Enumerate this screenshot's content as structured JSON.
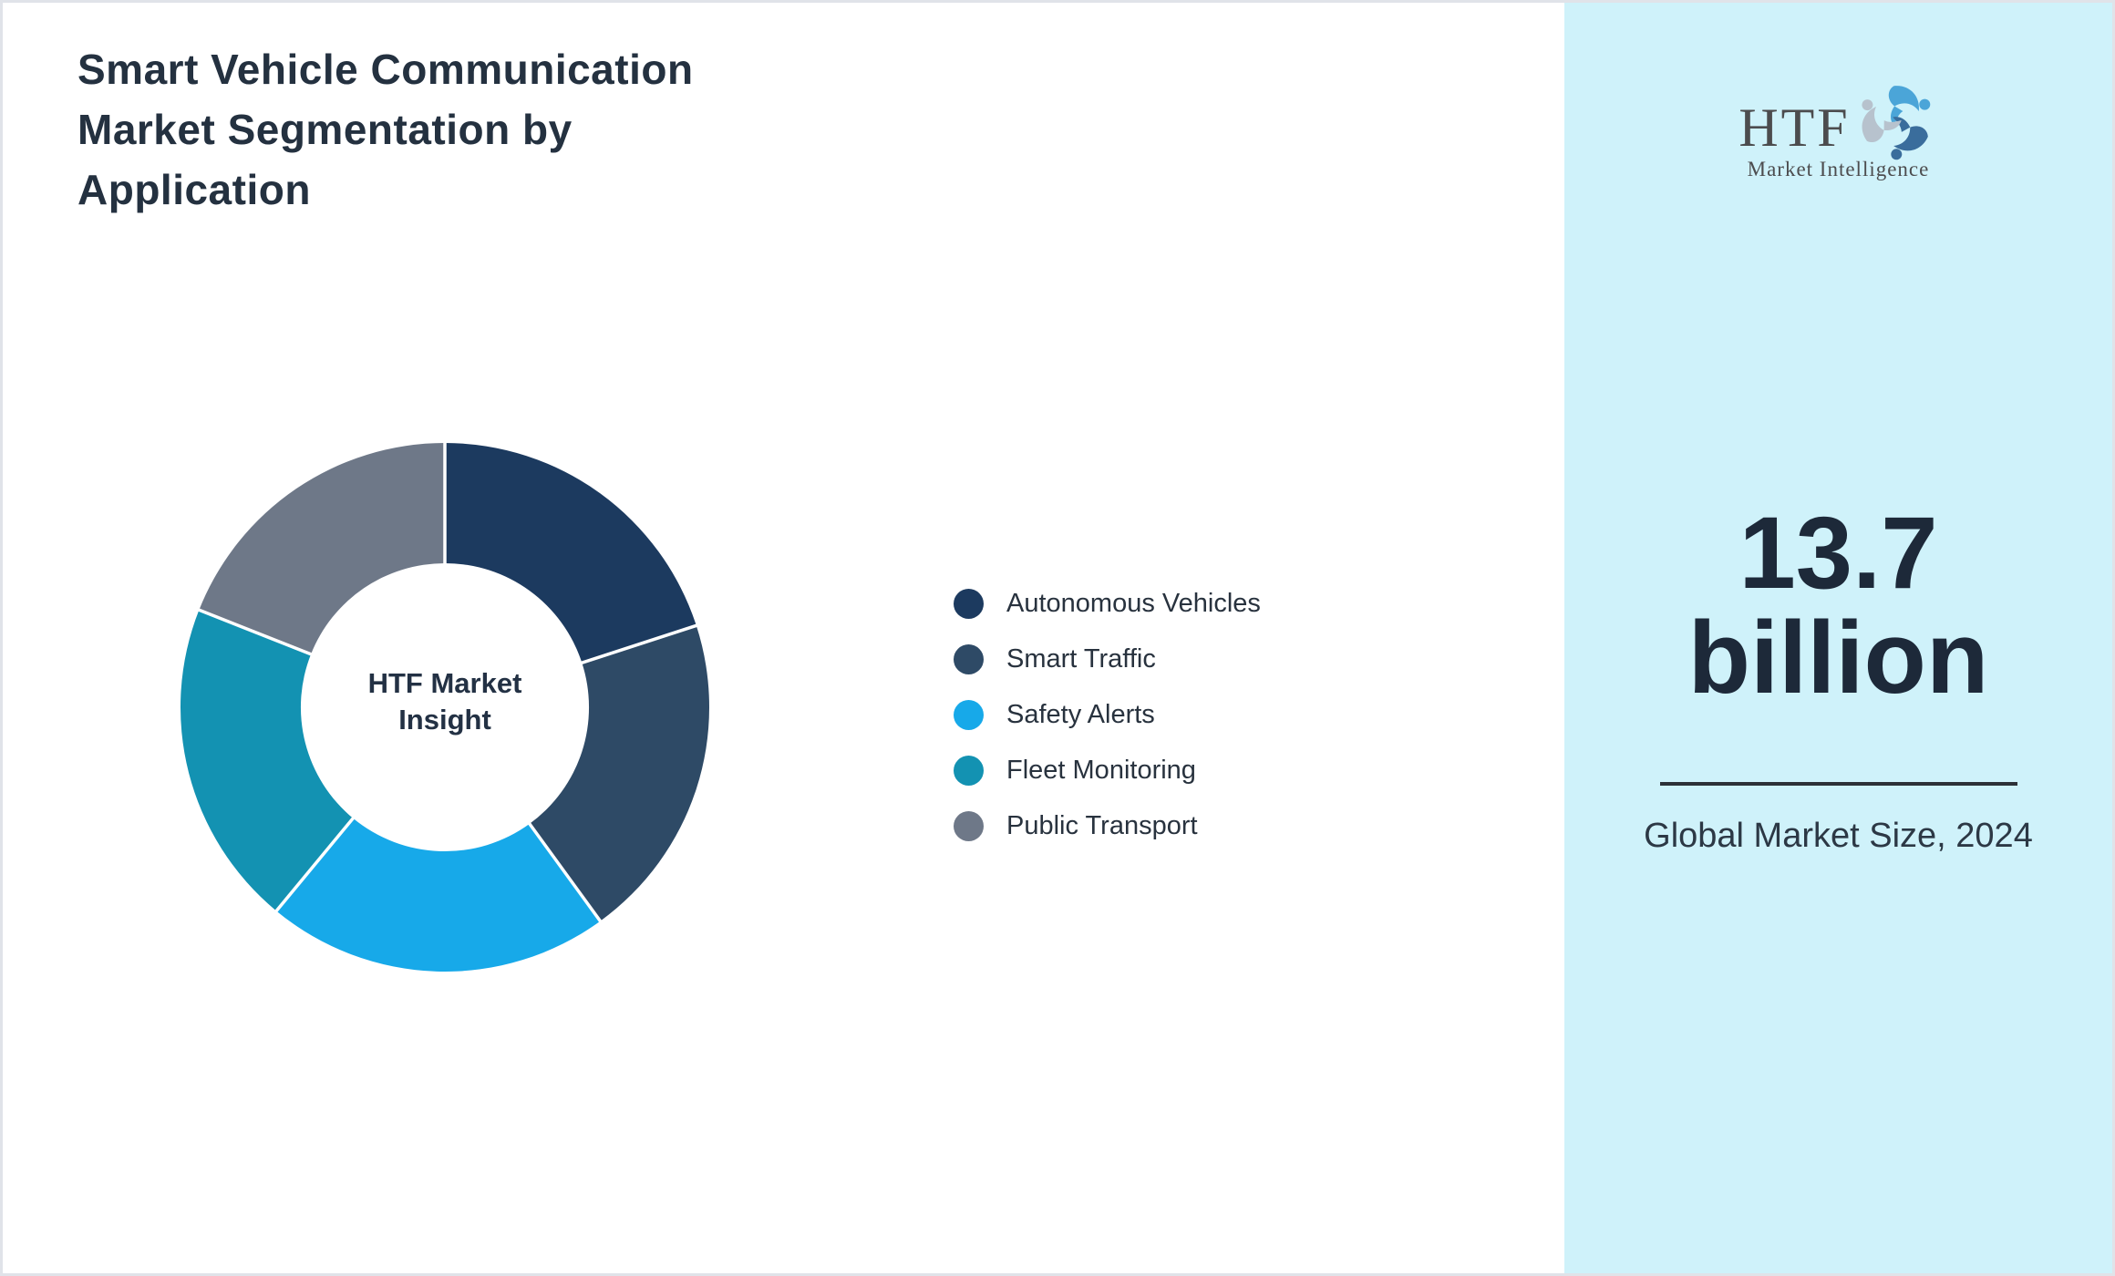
{
  "title": "Smart Vehicle Communication Market Segmentation by Application",
  "chart_data": {
    "type": "pie",
    "subtype": "donut",
    "title": "Smart Vehicle Communication Market Segmentation by Application",
    "center_label": "HTF Market Insight",
    "categories": [
      "Autonomous Vehicles",
      "Smart Traffic",
      "Safety Alerts",
      "Fleet Monitoring",
      "Public Transport"
    ],
    "values": [
      20,
      20,
      21,
      20,
      19
    ],
    "values_note": "percent share estimated from arc angles; no numeric labels shown in image",
    "colors": [
      "#1c3a5f",
      "#2e4a66",
      "#17a9e9",
      "#1392b2",
      "#6e7888"
    ],
    "start_angle": "top",
    "direction": "clockwise",
    "inner_radius_ratio": 0.545,
    "legend_position": "right",
    "grid": false
  },
  "sidebar": {
    "logo": {
      "acronym": "HTF",
      "subtitle": "Market Intelligence",
      "swirl_colors": [
        "#4ba5d8",
        "#3a6d9c",
        "#b7c2cd"
      ]
    },
    "market_size_value": "13.7 billion",
    "market_size_caption": "Global Market Size, 2024",
    "background_color": "#cff2fa"
  },
  "colors": {
    "title_text": "#243140",
    "big_number_text": "#1d2939",
    "divider": "#2c3137",
    "page_border": "#e0e3e9",
    "donut_divider": "#ffffff"
  }
}
